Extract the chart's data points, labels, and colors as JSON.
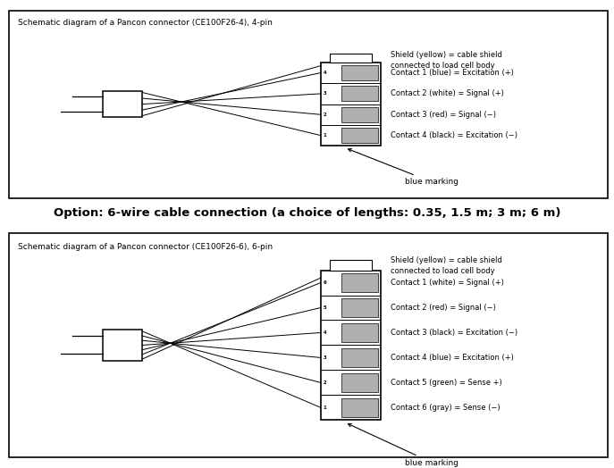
{
  "top_title": "Schematic diagram of a Pancon connector (CE100F26-4), 4-pin",
  "bottom_title": "Schematic diagram of a Pancon connector (CE100F26-6), 6-pin",
  "middle_text": "Option: 6-wire cable connection (a choice of lengths: 0.35, 1.5 m; 3 m; 6 m)",
  "top_labels": [
    "Shield (yellow) = cable shield\nconnected to load cell body",
    "Contact 1 (blue) = Excitation (+)",
    "Contact 2 (white) = Signal (+)",
    "Contact 3 (red) = Signal (−)",
    "Contact 4 (black) = Excitation (−)"
  ],
  "bottom_labels": [
    "Shield (yellow) = cable shield\nconnected to load cell body",
    "Contact 1 (white) = Signal (+)",
    "Contact 2 (red) = Signal (−)",
    "Contact 3 (black) = Excitation (−)",
    "Contact 4 (blue) = Excitation (+)",
    "Contact 5 (green) = Sense +)",
    "Contact 6 (gray) = Sense (−)"
  ],
  "blue_marking": "blue marking",
  "pin_gray": "#b0b0b0",
  "white": "#ffffff",
  "black": "#000000"
}
